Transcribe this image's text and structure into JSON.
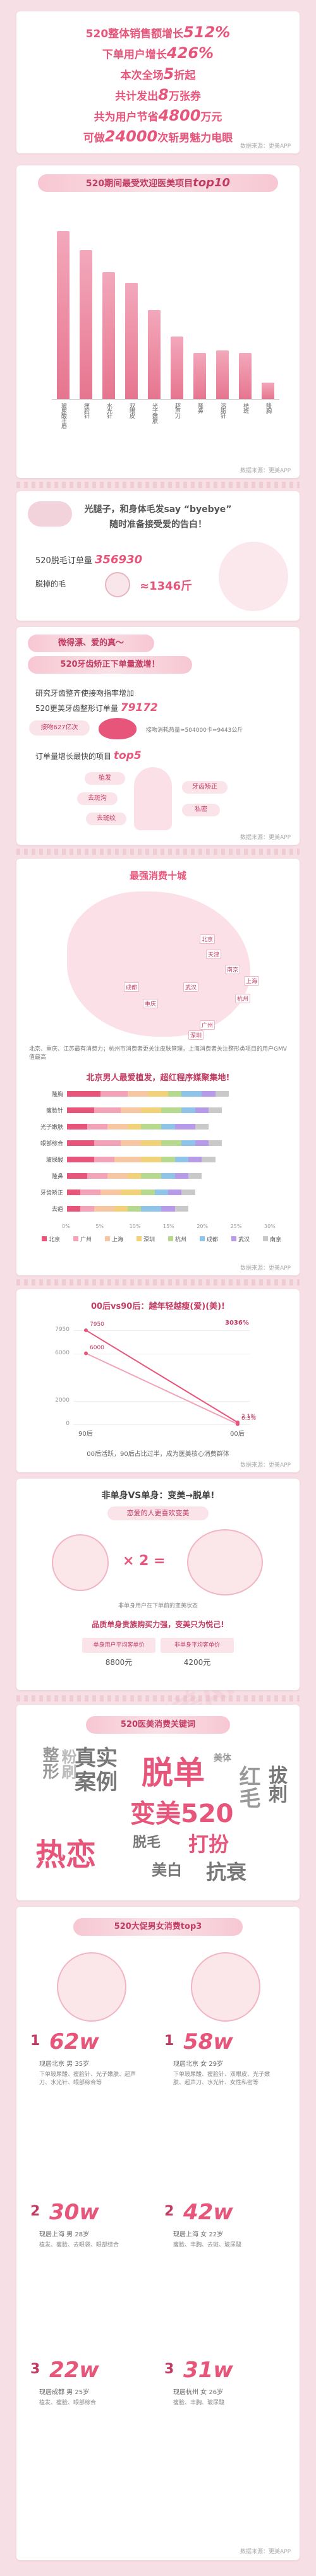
{
  "colors": {
    "accent": "#e8557a",
    "accent_dark": "#c23b62",
    "bg": "#f6dfe5",
    "bar": "#ec8aa3"
  },
  "watermark": "更美APP",
  "hero": {
    "line1_pre": "520整体销售额增长",
    "line1_val": "512%",
    "line2_pre": "下单用户增长",
    "line2_val": "426%",
    "line3_pre": "本次全场",
    "line3_val": "5",
    "line3_post": "折起",
    "line4_pre": "共计发出",
    "line4_val": "8",
    "line4_post": "万张券",
    "line5_pre": "共为用户节省",
    "line5_val": "4800",
    "line5_post": "万元",
    "line6_pre": "可做",
    "line6_val": "24000",
    "line6_post": "次斩男魅力电眼",
    "source": "数据来源：更美APP"
  },
  "top10": {
    "title_pre": "520期间最受欢迎医美项目",
    "title_val": "top10",
    "source": "数据来源：更美APP",
    "chart_data": {
      "type": "bar",
      "title": "520期间最受欢迎医美项目top10",
      "categories": [
        "玻尿酸丰唇",
        "瘦脸针",
        "水光针",
        "双眼皮",
        "光子嫩肤",
        "超声刀",
        "隆鼻",
        "溶脂针",
        "祛斑",
        "隆胸"
      ],
      "values": [
        62,
        55,
        47,
        43,
        33,
        23,
        17,
        18,
        17,
        6
      ]
    }
  },
  "hair": {
    "line1": "光腿子，和身体毛发say “byebye”",
    "line2": "随时准备接受爱的告白！",
    "order_label": "520脱毛订单量",
    "order_value": "356930",
    "hair_label": "脱掉的毛",
    "hair_value": "≈1346斤"
  },
  "teeth": {
    "line1": "微得漂、爱的真～",
    "line2": "520牙齿矫正下单量激增！",
    "study": "研究牙齿整齐使接吻指率增加",
    "order_label": "520更美牙齿整形订单量",
    "order_value": "79172",
    "kiss_label": "接吻627亿次",
    "kiss_note": "接吻消耗热量≈504000卡=9443公斤",
    "top5_label": "订单量增长最快的项目",
    "top5_val": "top5",
    "items": [
      "植发",
      "牙齿矫正",
      "去斑沟",
      "私密",
      "去斑纹"
    ],
    "source": "数据来源：更美APP"
  },
  "cities": {
    "title": "最强消费十城",
    "map_labels": [
      "北京",
      "天津",
      "成都",
      "重庆",
      "上海",
      "杭州",
      "南京",
      "广州",
      "深圳",
      "武汉"
    ],
    "note": "北京、重庆、江苏最有消费力；杭州市消费者更关注皮肤管理，上海消费者关注整形类项目的用户GMV值最高",
    "heading": "北京男人最爱植发，超红程序媒聚集地!",
    "source": "数据来源：更美APP",
    "chart_data": {
      "type": "bar",
      "categories": [
        "隆胸",
        "瘦脸针",
        "光子嫩肤",
        "眼部综合",
        "玻尿酸",
        "隆鼻",
        "牙齿矫正",
        "去疤"
      ],
      "series": [
        {
          "name": "北京",
          "values": [
            5,
            4,
            3,
            4,
            4,
            3,
            2,
            2
          ]
        },
        {
          "name": "广州",
          "values": [
            4,
            4,
            3,
            4,
            3,
            3,
            3,
            2
          ]
        },
        {
          "name": "上海",
          "values": [
            3,
            3,
            3,
            3,
            4,
            3,
            3,
            3
          ]
        },
        {
          "name": "深圳",
          "values": [
            3,
            3,
            2,
            3,
            3,
            2,
            3,
            2
          ]
        },
        {
          "name": "杭州",
          "values": [
            2,
            3,
            3,
            3,
            2,
            3,
            2,
            2
          ]
        },
        {
          "name": "成都",
          "values": [
            3,
            2,
            2,
            2,
            2,
            2,
            2,
            3
          ]
        },
        {
          "name": "武汉",
          "values": [
            2,
            2,
            3,
            2,
            2,
            2,
            2,
            2
          ]
        },
        {
          "name": "南京",
          "values": [
            2,
            2,
            2,
            2,
            2,
            2,
            2,
            2
          ]
        }
      ],
      "xticks": [
        "0%",
        "5%",
        "10%",
        "15%",
        "20%",
        "25%",
        "30%"
      ]
    }
  },
  "gen": {
    "title": "00后vs90后：越年轻越瘦(爱)(美)!",
    "note": "00后活跃，90后占比过半，成为医美核心消费群体",
    "source": "数据来源：更美APP",
    "chart_data": {
      "type": "line",
      "title": "00后vs90后：越年轻越瘦(爱)(美)!",
      "x": [
        "90后",
        "00后"
      ],
      "series": [
        {
          "name": "下单量",
          "values": [
            7950,
            2.1
          ]
        },
        {
          "name": "增长",
          "values": [
            6000,
            0.3
          ]
        }
      ],
      "yticks": [
        "0",
        "2000",
        "6000",
        "7950"
      ],
      "labels": [
        "7950",
        "2.1%",
        "6000",
        "0.3%"
      ],
      "top_label": "3036%"
    }
  },
  "single": {
    "title": "非单身VS单身：变美→脱单!",
    "sub": "恋爱的人更喜欢变美",
    "times": "× 2 =",
    "note": "非单身用户在下单前的变美状态",
    "heading": "品质单身贵族购买力强，变美只为悦己!",
    "label_a": "单身用户平均客单价",
    "label_b": "非单身平均客单价",
    "value_a": "8800元",
    "value_b": "4200元"
  },
  "keywords": {
    "title": "520医美消费关键词",
    "words": [
      "真实案例",
      "脱单",
      "美体",
      "变美520",
      "热恋",
      "脱毛",
      "打扮",
      "美白",
      "抗衰",
      "整形",
      "粉刷",
      "红毛",
      "拔刺"
    ]
  },
  "top3": {
    "title": "520大促男女消费top3",
    "male": [
      {
        "rank": "1",
        "value": "62w",
        "city": "现居北京",
        "gender": "男",
        "age": "35岁",
        "desc": "下单玻尿酸、瘦脸针、光子嫩肤、超声刀、水光针、眼部综合等"
      },
      {
        "rank": "2",
        "value": "30w",
        "city": "现居上海",
        "gender": "男",
        "age": "28岁",
        "desc": "植发、瘦脸、去眼袋、眼部综合"
      },
      {
        "rank": "3",
        "value": "22w",
        "city": "现居成都",
        "gender": "男",
        "age": "25岁",
        "desc": "植发、瘦脸、眼部综合"
      }
    ],
    "female": [
      {
        "rank": "1",
        "value": "58w",
        "city": "现居北京",
        "gender": "女",
        "age": "29岁",
        "desc": "下单玻尿酸、瘦脸针、双眼皮、光子嫩肤、超声刀、水光针、女性私密等"
      },
      {
        "rank": "2",
        "value": "42w",
        "city": "现居上海",
        "gender": "女",
        "age": "22岁",
        "desc": "瘦脸、丰胸、去斑、玻尿酸"
      },
      {
        "rank": "3",
        "value": "31w",
        "city": "现居杭州",
        "gender": "女",
        "age": "26岁",
        "desc": "瘦脸、丰胸、玻尿酸"
      }
    ],
    "source": "数据来源：更美APP"
  }
}
